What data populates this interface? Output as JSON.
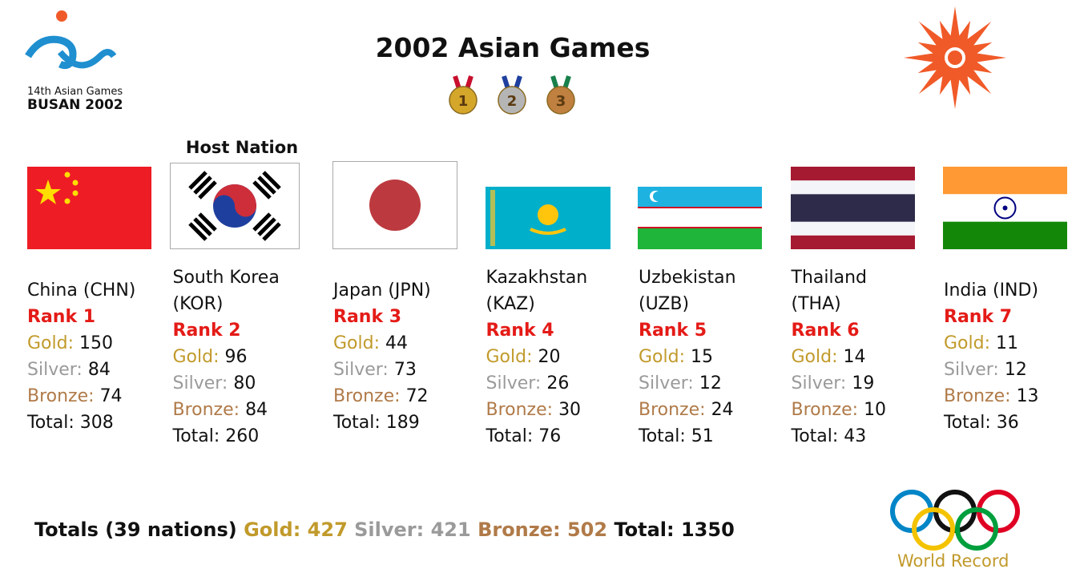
{
  "header": {
    "title": "2002 Asian Games",
    "logo_line1": "14th Asian Games",
    "logo_line2": "BUSAN 2002",
    "medals": [
      "1",
      "2",
      "3"
    ]
  },
  "host_label": "Host Nation",
  "labels": {
    "gold": "Gold:",
    "silver": "Silver:",
    "bronze": "Bronze:",
    "total": "Total:"
  },
  "nations": [
    {
      "name": "China (CHN)",
      "rank": "Rank 1",
      "gold": 150,
      "silver": 84,
      "bronze": 74,
      "total": 308
    },
    {
      "name": "South Korea (KOR)",
      "rank": "Rank 2",
      "gold": 96,
      "silver": 80,
      "bronze": 84,
      "total": 260
    },
    {
      "name": "Japan (JPN)",
      "rank": "Rank 3",
      "gold": 44,
      "silver": 73,
      "bronze": 72,
      "total": 189
    },
    {
      "name": "Kazakhstan (KAZ)",
      "rank": "Rank 4",
      "gold": 20,
      "silver": 26,
      "bronze": 30,
      "total": 76
    },
    {
      "name": "Uzbekistan (UZB)",
      "rank": "Rank 5",
      "gold": 15,
      "silver": 12,
      "bronze": 24,
      "total": 51
    },
    {
      "name": "Thailand (THA)",
      "rank": "Rank 6",
      "gold": 14,
      "silver": 19,
      "bronze": 10,
      "total": 43
    },
    {
      "name": "India (IND)",
      "rank": "Rank 7",
      "gold": 11,
      "silver": 12,
      "bronze": 13,
      "total": 36
    }
  ],
  "footer": {
    "prefix": "Totals (39 nations)",
    "gold": 427,
    "silver": 421,
    "bronze": 502,
    "total": 1350
  },
  "watermark": "World Record"
}
